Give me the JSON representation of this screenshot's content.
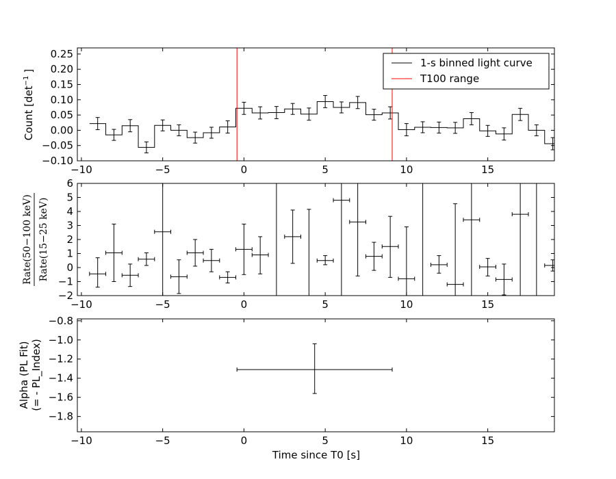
{
  "chart_data": [
    {
      "type": "line",
      "name": "light-curve",
      "xlabel": "",
      "ylabel": "Count [det$^{-1}$ ]",
      "ylabel_text": "Count [det",
      "ylabel_sup": "−1",
      "ylabel_end": "]",
      "xlim": [
        -10.25,
        19.1
      ],
      "ylim": [
        -0.1,
        0.27
      ],
      "xticks": [
        -10,
        -5,
        0,
        5,
        10,
        15
      ],
      "xtick_labels": [
        "−10",
        "−5",
        "0",
        "5",
        "10",
        "15"
      ],
      "yticks": [
        -0.1,
        -0.05,
        0.0,
        0.05,
        0.1,
        0.15,
        0.2,
        0.25
      ],
      "ytick_labels": [
        "−0.10",
        "−0.05",
        "0.00",
        "0.05",
        "0.10",
        "0.15",
        "0.20",
        "0.25"
      ],
      "legend": {
        "placement": "top-right",
        "entries": [
          {
            "label": "1-s binned light curve",
            "color": "#000000"
          },
          {
            "label": "T100 range",
            "color": "#ff0000"
          }
        ]
      },
      "vlines": [
        -0.43,
        9.12
      ],
      "bins": {
        "x": [
          -9,
          -8,
          -7,
          -6,
          -5,
          -4,
          -3,
          -2,
          -1,
          0,
          1,
          2,
          3,
          4,
          5,
          6,
          7,
          8,
          9,
          10,
          11,
          12,
          13,
          14,
          15,
          16,
          17,
          18,
          19
        ],
        "y": [
          0.022,
          -0.015,
          0.015,
          -0.056,
          0.016,
          0.0,
          -0.024,
          -0.008,
          0.011,
          0.072,
          0.057,
          0.058,
          0.07,
          0.053,
          0.094,
          0.075,
          0.091,
          0.051,
          0.057,
          0.002,
          0.01,
          0.009,
          0.008,
          0.038,
          -0.002,
          -0.012,
          0.052,
          0.0,
          -0.044
        ],
        "err": [
          0.02,
          0.018,
          0.02,
          0.018,
          0.018,
          0.018,
          0.018,
          0.018,
          0.02,
          0.02,
          0.02,
          0.02,
          0.018,
          0.02,
          0.02,
          0.018,
          0.02,
          0.018,
          0.02,
          0.02,
          0.018,
          0.018,
          0.018,
          0.02,
          0.018,
          0.02,
          0.02,
          0.018,
          0.02
        ]
      }
    },
    {
      "type": "scatter",
      "name": "hardness-ratio",
      "ylabel_num": "Rate(50−100 keV)",
      "ylabel_den": "Rate(15−25 keV)",
      "xlim": [
        -10.25,
        19.1
      ],
      "ylim": [
        -2,
        6
      ],
      "xticks": [
        -10,
        -5,
        0,
        5,
        10,
        15
      ],
      "xtick_labels": [
        "−10",
        "−5",
        "0",
        "5",
        "10",
        "15"
      ],
      "yticks": [
        -2,
        -1,
        0,
        1,
        2,
        3,
        4,
        5,
        6
      ],
      "ytick_labels": [
        "−2",
        "−1",
        "0",
        "1",
        "2",
        "3",
        "4",
        "5",
        "6"
      ],
      "points": [
        {
          "x": -9,
          "y": -0.45,
          "lo": -1.4,
          "hi": 0.7
        },
        {
          "x": -8,
          "y": 1.05,
          "lo": -1.0,
          "hi": 3.1
        },
        {
          "x": -7,
          "y": -0.55,
          "lo": -1.35,
          "hi": 0.25
        },
        {
          "x": -6,
          "y": 0.6,
          "lo": 0.15,
          "hi": 1.05
        },
        {
          "x": -5,
          "y": 2.55,
          "lo": -2.0,
          "hi": 6.0
        },
        {
          "x": -4,
          "y": -0.65,
          "lo": -1.85,
          "hi": 0.55
        },
        {
          "x": -3,
          "y": 1.05,
          "lo": 0.1,
          "hi": 2.0
        },
        {
          "x": -2,
          "y": 0.5,
          "lo": -0.3,
          "hi": 1.3
        },
        {
          "x": -1,
          "y": -0.7,
          "lo": -1.1,
          "hi": -0.3
        },
        {
          "x": 0,
          "y": 1.3,
          "lo": -0.5,
          "hi": 3.1
        },
        {
          "x": 1,
          "y": 0.9,
          "lo": -0.45,
          "hi": 2.2
        },
        {
          "x": 2,
          "y": null,
          "lo": -2.0,
          "hi": 6.0
        },
        {
          "x": 3,
          "y": 2.2,
          "lo": 0.3,
          "hi": 4.1
        },
        {
          "x": 4,
          "y": null,
          "lo": -2.0,
          "hi": 4.15
        },
        {
          "x": 5,
          "y": 0.5,
          "lo": 0.2,
          "hi": 0.85
        },
        {
          "x": 6,
          "y": 4.8,
          "lo": -2.0,
          "hi": 6.0
        },
        {
          "x": 7,
          "y": 3.25,
          "lo": -0.6,
          "hi": 6.0
        },
        {
          "x": 8,
          "y": 0.8,
          "lo": -0.2,
          "hi": 1.8
        },
        {
          "x": 9,
          "y": 1.5,
          "lo": -0.7,
          "hi": 3.65
        },
        {
          "x": 10,
          "y": -0.8,
          "lo": -2.0,
          "hi": 2.9
        },
        {
          "x": 11,
          "y": null,
          "lo": -2.0,
          "hi": 6.0
        },
        {
          "x": 12,
          "y": 0.2,
          "lo": -0.4,
          "hi": 0.85
        },
        {
          "x": 13,
          "y": -1.2,
          "lo": -2.0,
          "hi": 4.55
        },
        {
          "x": 14,
          "y": 3.4,
          "lo": -2.0,
          "hi": 6.0
        },
        {
          "x": 15,
          "y": 0.05,
          "lo": -0.6,
          "hi": 0.65
        },
        {
          "x": 16,
          "y": -0.85,
          "lo": -1.95,
          "hi": 0.25
        },
        {
          "x": 17,
          "y": 3.8,
          "lo": -2.0,
          "hi": 6.0
        },
        {
          "x": 18,
          "y": null,
          "lo": -2.0,
          "hi": 6.0
        },
        {
          "x": 19,
          "y": 0.15,
          "lo": -0.25,
          "hi": 0.55
        }
      ]
    },
    {
      "type": "scatter",
      "name": "alpha",
      "xlabel": "Time since T0 [s]",
      "ylabel_line1": "Alpha (PL Fit)",
      "ylabel_line2": "(= - PL_Index)",
      "xlim": [
        -10.25,
        19.1
      ],
      "ylim": [
        -1.96,
        -0.78
      ],
      "xticks": [
        -10,
        -5,
        0,
        5,
        10,
        15
      ],
      "xtick_labels": [
        "−10",
        "−5",
        "0",
        "5",
        "10",
        "15"
      ],
      "yticks": [
        -1.8,
        -1.6,
        -1.4,
        -1.2,
        -1.0,
        -0.8
      ],
      "ytick_labels": [
        "−1.8",
        "−1.6",
        "−1.4",
        "−1.2",
        "−1.0",
        "−0.8"
      ],
      "points": [
        {
          "x": 4.35,
          "y": -1.31,
          "xlo": -0.43,
          "xhi": 9.12,
          "ylo": -1.56,
          "yhi": -1.04
        }
      ]
    }
  ]
}
